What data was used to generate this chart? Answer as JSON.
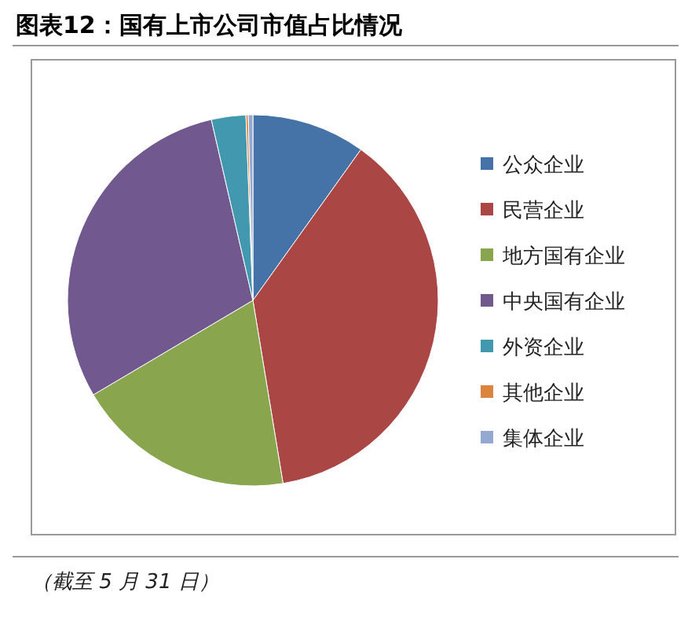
{
  "chart_data": {
    "type": "pie",
    "title": "图表12：国有上市公司市值占比情况",
    "categories": [
      "公众企业",
      "民营企业",
      "地方国有企业",
      "中央国有企业",
      "外资企业",
      "其他企业",
      "集体企业"
    ],
    "values": [
      9.9,
      37.5,
      19.1,
      29.9,
      3.0,
      0.2,
      0.4
    ],
    "colors": [
      "#4572a7",
      "#aa4643",
      "#89a54e",
      "#71588f",
      "#4198af",
      "#db843d",
      "#93a9cf"
    ],
    "legend": "right",
    "annotations": [
      "（截至 5 月 31 日）"
    ]
  }
}
